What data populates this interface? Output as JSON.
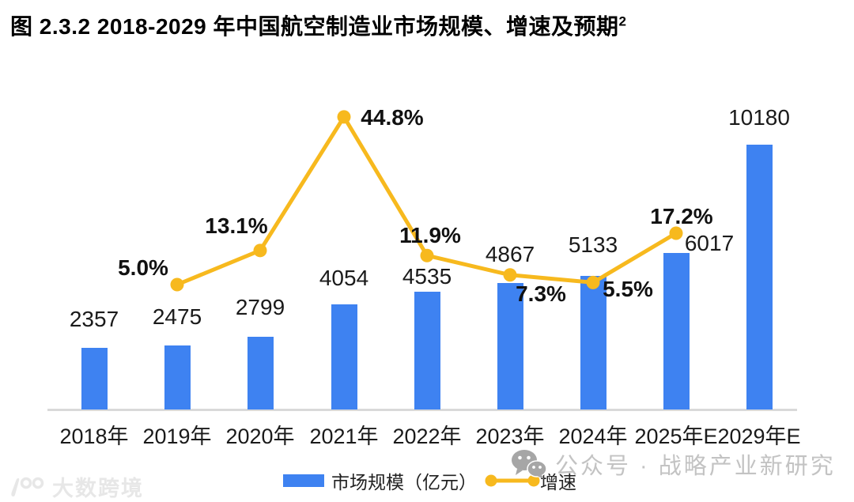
{
  "title": {
    "text": "图 2.3.2 2018-2029 年中国航空制造业市场规模、增速及预期",
    "footnote_sup": "2"
  },
  "chart_data": {
    "type": "bar",
    "subtype": "bar+line combo, dual implicit axes, no gridlines, labels on points",
    "title": "图 2.3.2 2018-2029 年中国航空制造业市场规模、增速及预期²",
    "categories": [
      "2018年",
      "2019年",
      "2020年",
      "2021年",
      "2022年",
      "2023年",
      "2024年",
      "2025年E",
      "2029年E"
    ],
    "series": [
      {
        "name": "市场规模（亿元）",
        "type": "bar",
        "values": [
          2357,
          2475,
          2799,
          4054,
          4535,
          4867,
          5133,
          6017,
          10180
        ],
        "value_labels": [
          "2357",
          "2475",
          "2799",
          "4054",
          "4535",
          "4867",
          "5133",
          "6017",
          "10180"
        ],
        "color": "#3E82F1"
      },
      {
        "name": "增速",
        "type": "line",
        "values_percent": [
          null,
          5.0,
          13.1,
          44.8,
          11.9,
          7.3,
          5.5,
          17.2,
          null
        ],
        "point_labels": [
          null,
          "5.0%",
          "13.1%",
          "44.8%",
          "11.9%",
          "7.3%",
          "5.5%",
          "17.2%",
          null
        ],
        "color": "#F7B91E"
      }
    ],
    "legend_position": "bottom",
    "grid": false,
    "y_axis_visible": false
  },
  "legend": {
    "bar_label": "市场规模（亿元）",
    "line_label": "增速"
  },
  "watermarks": {
    "left": {
      "icon": "100-logo-icon",
      "text": "大数跨境"
    },
    "right": {
      "icon": "wechat-icon",
      "text": "公众号 · 战略产业新研究"
    }
  },
  "colors": {
    "bar": "#3E82F1",
    "line": "#F7B91E",
    "axis": "#D9D9D9",
    "watermark_gray": "#C3C3C3",
    "watermark_light": "#E7E7E7"
  }
}
